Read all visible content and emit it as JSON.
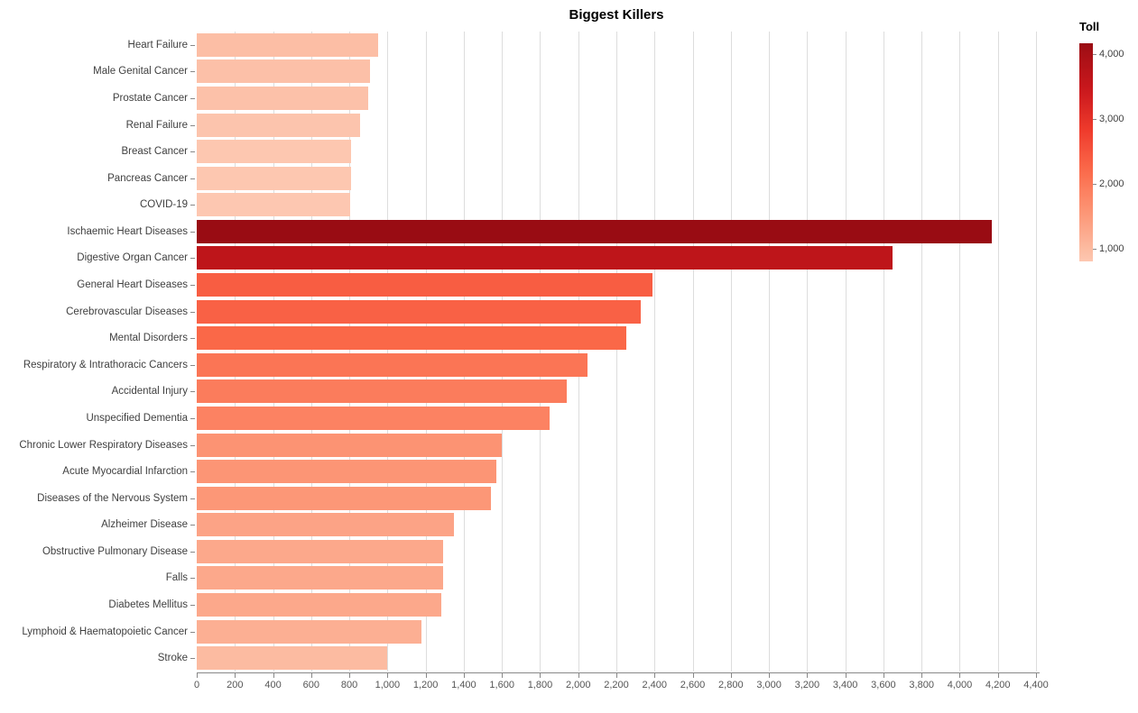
{
  "title": "Biggest Killers",
  "legend": {
    "title": "Toll",
    "ticks": [
      {
        "value": 4000,
        "label": "4,000"
      },
      {
        "value": 3000,
        "label": "3,000"
      },
      {
        "value": 2000,
        "label": "2,000"
      },
      {
        "value": 1000,
        "label": "1,000"
      }
    ]
  },
  "chart_data": {
    "type": "bar",
    "orientation": "horizontal",
    "title": "Biggest Killers",
    "xlabel": "",
    "ylabel": "",
    "xlim": [
      0,
      4400
    ],
    "x_tick_step": 200,
    "x_ticks": [
      0,
      200,
      400,
      600,
      800,
      1000,
      1200,
      1400,
      1600,
      1800,
      2000,
      2200,
      2400,
      2600,
      2800,
      3000,
      3200,
      3400,
      3600,
      3800,
      4000,
      4200,
      4400
    ],
    "x_tick_labels": [
      "0",
      "200",
      "400",
      "600",
      "800",
      "1,000",
      "1,200",
      "1,400",
      "1,600",
      "1,800",
      "2,000",
      "2,200",
      "2,400",
      "2,600",
      "2,800",
      "3,000",
      "3,200",
      "3,400",
      "3,600",
      "3,800",
      "4,000",
      "4,200",
      "4,400"
    ],
    "grid": true,
    "legend_position": "right",
    "color_field": "Toll",
    "color_domain": [
      805,
      4170
    ],
    "categories": [
      "Heart Failure",
      "Male Genital Cancer",
      "Prostate Cancer",
      "Renal Failure",
      "Breast Cancer",
      "Pancreas Cancer",
      "COVID-19",
      "Ischaemic Heart Diseases",
      "Digestive Organ Cancer",
      "General Heart Diseases",
      "Cerebrovascular Diseases",
      "Mental Disorders",
      "Respiratory & Intrathoracic Cancers",
      "Accidental Injury",
      "Unspecified Dementia",
      "Chronic Lower Respiratory Diseases",
      "Acute Myocardial Infarction",
      "Diseases of the Nervous System",
      "Alzheimer Disease",
      "Obstructive Pulmonary Disease",
      "Falls",
      "Diabetes Mellitus",
      "Lymphoid & Haematopoietic Cancer",
      "Stroke"
    ],
    "values": [
      950,
      910,
      900,
      855,
      810,
      810,
      805,
      4170,
      3650,
      2390,
      2330,
      2250,
      2050,
      1940,
      1850,
      1600,
      1570,
      1540,
      1350,
      1290,
      1290,
      1280,
      1180,
      1000
    ]
  },
  "colors": {
    "background": "#ffffff",
    "reds_scale_stops": [
      "#fff5f0",
      "#fee0d2",
      "#fcbba1",
      "#fc9272",
      "#fb6a4a",
      "#ef3b2c",
      "#cb181d",
      "#a50f15",
      "#67000d"
    ],
    "scale_t_min": 0.21,
    "scale_t_max": 0.9,
    "darkest_bar": "#990c13",
    "lightest_bar": "#fdc7b1",
    "grid_line": "#dddddd",
    "axis_line": "#888888",
    "x_tick_text": "#555555",
    "y_label_text": "#3f3f3f",
    "title_text": "#000000"
  }
}
